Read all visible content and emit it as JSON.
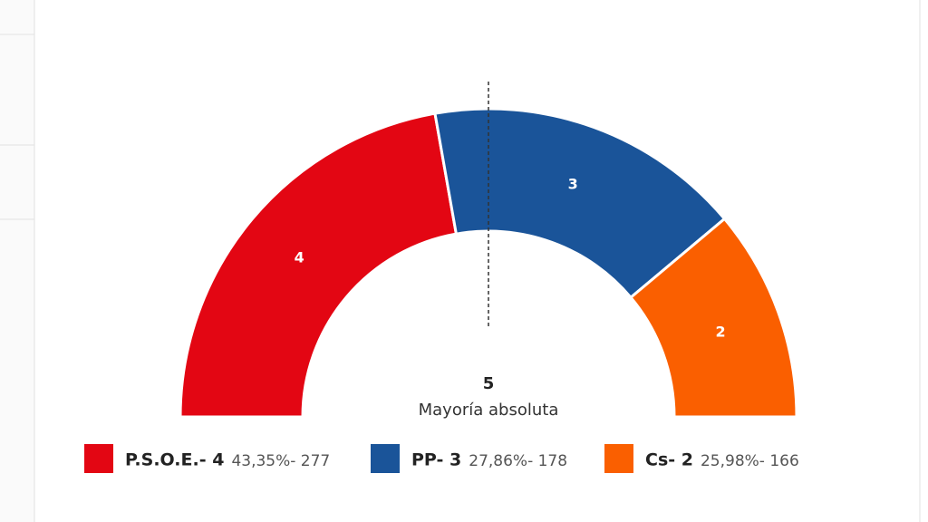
{
  "chart_data": {
    "type": "semicircle",
    "categories": [
      "P.S.O.E.",
      "PP",
      "Cs"
    ],
    "values": [
      4,
      3,
      2
    ],
    "colors": [
      "#e30613",
      "#1a5499",
      "#fa5f00"
    ],
    "legend": [
      {
        "label": "P.S.O.E.- 4",
        "detail": "43,35%- 277"
      },
      {
        "label": "PP- 3",
        "detail": "27,86%- 178"
      },
      {
        "label": "Cs- 2",
        "detail": "25,98%- 166"
      }
    ],
    "majority": 5,
    "majority_label": "Mayoría absoluta"
  }
}
